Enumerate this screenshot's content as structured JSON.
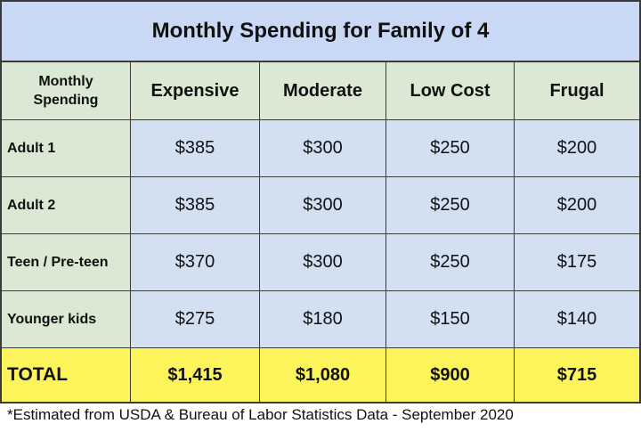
{
  "title": "Monthly Spending for Family of 4",
  "table": {
    "header": [
      "Monthly Spending",
      "Expensive",
      "Moderate",
      "Low Cost",
      "Frugal"
    ],
    "rows": [
      [
        "Adult 1",
        "$385",
        "$300",
        "$250",
        "$200"
      ],
      [
        "Adult 2",
        "$385",
        "$300",
        "$250",
        "$200"
      ],
      [
        "Teen / Pre-teen",
        "$370",
        "$300",
        "$250",
        "$175"
      ],
      [
        "Younger kids",
        "$275",
        "$180",
        "$150",
        "$140"
      ]
    ],
    "total": [
      "TOTAL",
      "$1,415",
      "$1,080",
      "$900",
      "$715"
    ]
  },
  "footnote": "*Estimated from USDA & Bureau of Labor Statistics Data - September 2020"
}
